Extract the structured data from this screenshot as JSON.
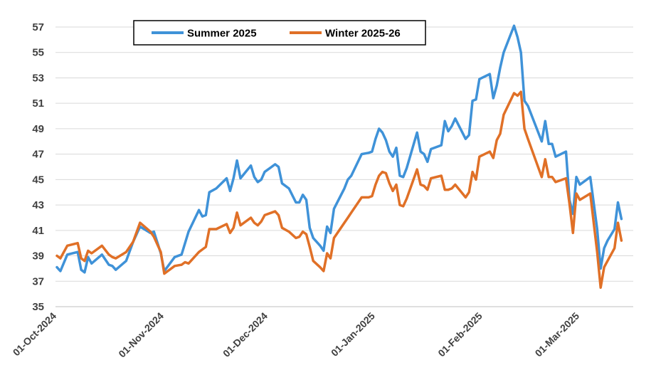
{
  "chart_data": {
    "type": "line",
    "title": "",
    "xlabel": "",
    "ylabel": "",
    "ylim": [
      35,
      57
    ],
    "yticks": [
      35,
      37,
      39,
      41,
      43,
      45,
      47,
      49,
      51,
      53,
      55,
      57
    ],
    "grid": true,
    "legend_position": "top-left",
    "x_tick_labels": [
      "01-Oct-2024",
      "01-Nov-2024",
      "01-Dec-2024",
      "01-Jan-2025",
      "01-Feb-2025",
      "01-Mar-2025"
    ],
    "x_tick_days": [
      0,
      31,
      61,
      92,
      123,
      151
    ],
    "x_range_days": [
      0,
      166
    ],
    "series": [
      {
        "name": "Summer 2025",
        "color": "#3F92D8",
        "points": [
          [
            0,
            38.1
          ],
          [
            1,
            37.8
          ],
          [
            3,
            39.1
          ],
          [
            6,
            39.3
          ],
          [
            7,
            37.9
          ],
          [
            8,
            37.7
          ],
          [
            9,
            38.9
          ],
          [
            10,
            38.4
          ],
          [
            13,
            39.1
          ],
          [
            15,
            38.3
          ],
          [
            16,
            38.2
          ],
          [
            17,
            37.9
          ],
          [
            20,
            38.6
          ],
          [
            22,
            40.1
          ],
          [
            24,
            41.3
          ],
          [
            27,
            40.8
          ],
          [
            28,
            40.9
          ],
          [
            30,
            39.2
          ],
          [
            31,
            37.8
          ],
          [
            34,
            38.9
          ],
          [
            36,
            39.1
          ],
          [
            38,
            40.9
          ],
          [
            41,
            42.6
          ],
          [
            42,
            42.1
          ],
          [
            43,
            42.2
          ],
          [
            44,
            44.0
          ],
          [
            46,
            44.3
          ],
          [
            49,
            45.1
          ],
          [
            50,
            44.1
          ],
          [
            51,
            45.1
          ],
          [
            52,
            46.5
          ],
          [
            53,
            45.1
          ],
          [
            56,
            46.1
          ],
          [
            57,
            45.2
          ],
          [
            58,
            44.8
          ],
          [
            59,
            45.0
          ],
          [
            60,
            45.6
          ],
          [
            62,
            46.0
          ],
          [
            63,
            46.2
          ],
          [
            64,
            46.0
          ],
          [
            65,
            44.7
          ],
          [
            67,
            44.3
          ],
          [
            69,
            43.2
          ],
          [
            70,
            43.2
          ],
          [
            71,
            43.8
          ],
          [
            72,
            43.4
          ],
          [
            73,
            41.2
          ],
          [
            74,
            40.4
          ],
          [
            76,
            39.8
          ],
          [
            77,
            39.4
          ],
          [
            78,
            41.3
          ],
          [
            79,
            40.8
          ],
          [
            80,
            42.7
          ],
          [
            83,
            44.3
          ],
          [
            84,
            45.0
          ],
          [
            85,
            45.3
          ],
          [
            88,
            47.0
          ],
          [
            90,
            47.1
          ],
          [
            91,
            47.2
          ],
          [
            92,
            48.2
          ],
          [
            93,
            49.0
          ],
          [
            94,
            48.7
          ],
          [
            95,
            48.1
          ],
          [
            96,
            47.2
          ],
          [
            97,
            46.8
          ],
          [
            98,
            47.5
          ],
          [
            99,
            45.3
          ],
          [
            100,
            45.2
          ],
          [
            101,
            45.9
          ],
          [
            104,
            48.7
          ],
          [
            105,
            47.2
          ],
          [
            106,
            47.0
          ],
          [
            107,
            46.4
          ],
          [
            108,
            47.4
          ],
          [
            111,
            47.7
          ],
          [
            112,
            49.6
          ],
          [
            113,
            48.8
          ],
          [
            114,
            49.2
          ],
          [
            115,
            49.8
          ],
          [
            118,
            48.2
          ],
          [
            119,
            48.5
          ],
          [
            120,
            51.2
          ],
          [
            121,
            51.3
          ],
          [
            122,
            52.9
          ],
          [
            125,
            53.3
          ],
          [
            126,
            51.4
          ],
          [
            127,
            52.4
          ],
          [
            128,
            53.8
          ],
          [
            129,
            55.0
          ],
          [
            132,
            57.1
          ],
          [
            133,
            56.2
          ],
          [
            134,
            55.0
          ],
          [
            135,
            51.2
          ],
          [
            136,
            50.8
          ],
          [
            140,
            48.0
          ],
          [
            141,
            49.6
          ],
          [
            142,
            47.8
          ],
          [
            143,
            47.8
          ],
          [
            144,
            46.8
          ],
          [
            147,
            47.2
          ],
          [
            148,
            43.4
          ],
          [
            149,
            42.3
          ],
          [
            150,
            45.2
          ],
          [
            151,
            44.6
          ],
          [
            154,
            45.2
          ],
          [
            156,
            41.1
          ],
          [
            157,
            38.0
          ],
          [
            158,
            39.6
          ],
          [
            159,
            40.2
          ],
          [
            161,
            41.1
          ],
          [
            162,
            43.2
          ],
          [
            163,
            41.9
          ]
        ]
      },
      {
        "name": "Winter 2025-26",
        "color": "#E07027",
        "points": [
          [
            0,
            39.0
          ],
          [
            1,
            38.8
          ],
          [
            3,
            39.8
          ],
          [
            6,
            40.0
          ],
          [
            7,
            38.8
          ],
          [
            8,
            38.6
          ],
          [
            9,
            39.4
          ],
          [
            10,
            39.2
          ],
          [
            13,
            39.8
          ],
          [
            15,
            39.1
          ],
          [
            16,
            38.9
          ],
          [
            17,
            38.8
          ],
          [
            20,
            39.3
          ],
          [
            22,
            40.1
          ],
          [
            24,
            41.6
          ],
          [
            27,
            40.9
          ],
          [
            28,
            40.5
          ],
          [
            30,
            39.3
          ],
          [
            31,
            37.6
          ],
          [
            34,
            38.2
          ],
          [
            36,
            38.3
          ],
          [
            37,
            38.5
          ],
          [
            38,
            38.4
          ],
          [
            41,
            39.3
          ],
          [
            42,
            39.5
          ],
          [
            43,
            39.7
          ],
          [
            44,
            41.1
          ],
          [
            46,
            41.1
          ],
          [
            49,
            41.5
          ],
          [
            50,
            40.8
          ],
          [
            51,
            41.2
          ],
          [
            52,
            42.4
          ],
          [
            53,
            41.4
          ],
          [
            56,
            42.0
          ],
          [
            57,
            41.6
          ],
          [
            58,
            41.4
          ],
          [
            59,
            41.7
          ],
          [
            60,
            42.2
          ],
          [
            62,
            42.4
          ],
          [
            63,
            42.5
          ],
          [
            64,
            42.2
          ],
          [
            65,
            41.2
          ],
          [
            67,
            40.9
          ],
          [
            69,
            40.4
          ],
          [
            70,
            40.5
          ],
          [
            71,
            40.9
          ],
          [
            72,
            40.7
          ],
          [
            73,
            39.7
          ],
          [
            74,
            38.6
          ],
          [
            76,
            38.1
          ],
          [
            77,
            37.8
          ],
          [
            78,
            39.2
          ],
          [
            79,
            38.8
          ],
          [
            80,
            40.4
          ],
          [
            83,
            41.6
          ],
          [
            84,
            42.0
          ],
          [
            85,
            42.4
          ],
          [
            88,
            43.6
          ],
          [
            90,
            43.6
          ],
          [
            91,
            43.7
          ],
          [
            92,
            44.6
          ],
          [
            93,
            45.3
          ],
          [
            94,
            45.6
          ],
          [
            95,
            45.5
          ],
          [
            96,
            44.7
          ],
          [
            97,
            44.1
          ],
          [
            98,
            44.6
          ],
          [
            99,
            43.0
          ],
          [
            100,
            42.9
          ],
          [
            101,
            43.5
          ],
          [
            104,
            45.8
          ],
          [
            105,
            44.6
          ],
          [
            106,
            44.5
          ],
          [
            107,
            44.2
          ],
          [
            108,
            45.1
          ],
          [
            111,
            45.3
          ],
          [
            112,
            44.2
          ],
          [
            113,
            44.2
          ],
          [
            114,
            44.3
          ],
          [
            115,
            44.6
          ],
          [
            118,
            43.6
          ],
          [
            119,
            44.0
          ],
          [
            120,
            45.6
          ],
          [
            121,
            45.0
          ],
          [
            122,
            46.8
          ],
          [
            125,
            47.2
          ],
          [
            126,
            46.7
          ],
          [
            127,
            48.1
          ],
          [
            128,
            48.6
          ],
          [
            129,
            50.1
          ],
          [
            132,
            51.8
          ],
          [
            133,
            51.6
          ],
          [
            134,
            51.9
          ],
          [
            135,
            49.0
          ],
          [
            136,
            48.2
          ],
          [
            140,
            45.2
          ],
          [
            141,
            46.6
          ],
          [
            142,
            45.2
          ],
          [
            143,
            45.2
          ],
          [
            144,
            44.8
          ],
          [
            147,
            45.1
          ],
          [
            148,
            43.1
          ],
          [
            149,
            40.8
          ],
          [
            150,
            43.9
          ],
          [
            151,
            43.4
          ],
          [
            154,
            43.9
          ],
          [
            156,
            39.3
          ],
          [
            157,
            36.5
          ],
          [
            158,
            38.1
          ],
          [
            159,
            38.6
          ],
          [
            161,
            39.6
          ],
          [
            162,
            41.6
          ],
          [
            163,
            40.2
          ]
        ]
      }
    ]
  }
}
